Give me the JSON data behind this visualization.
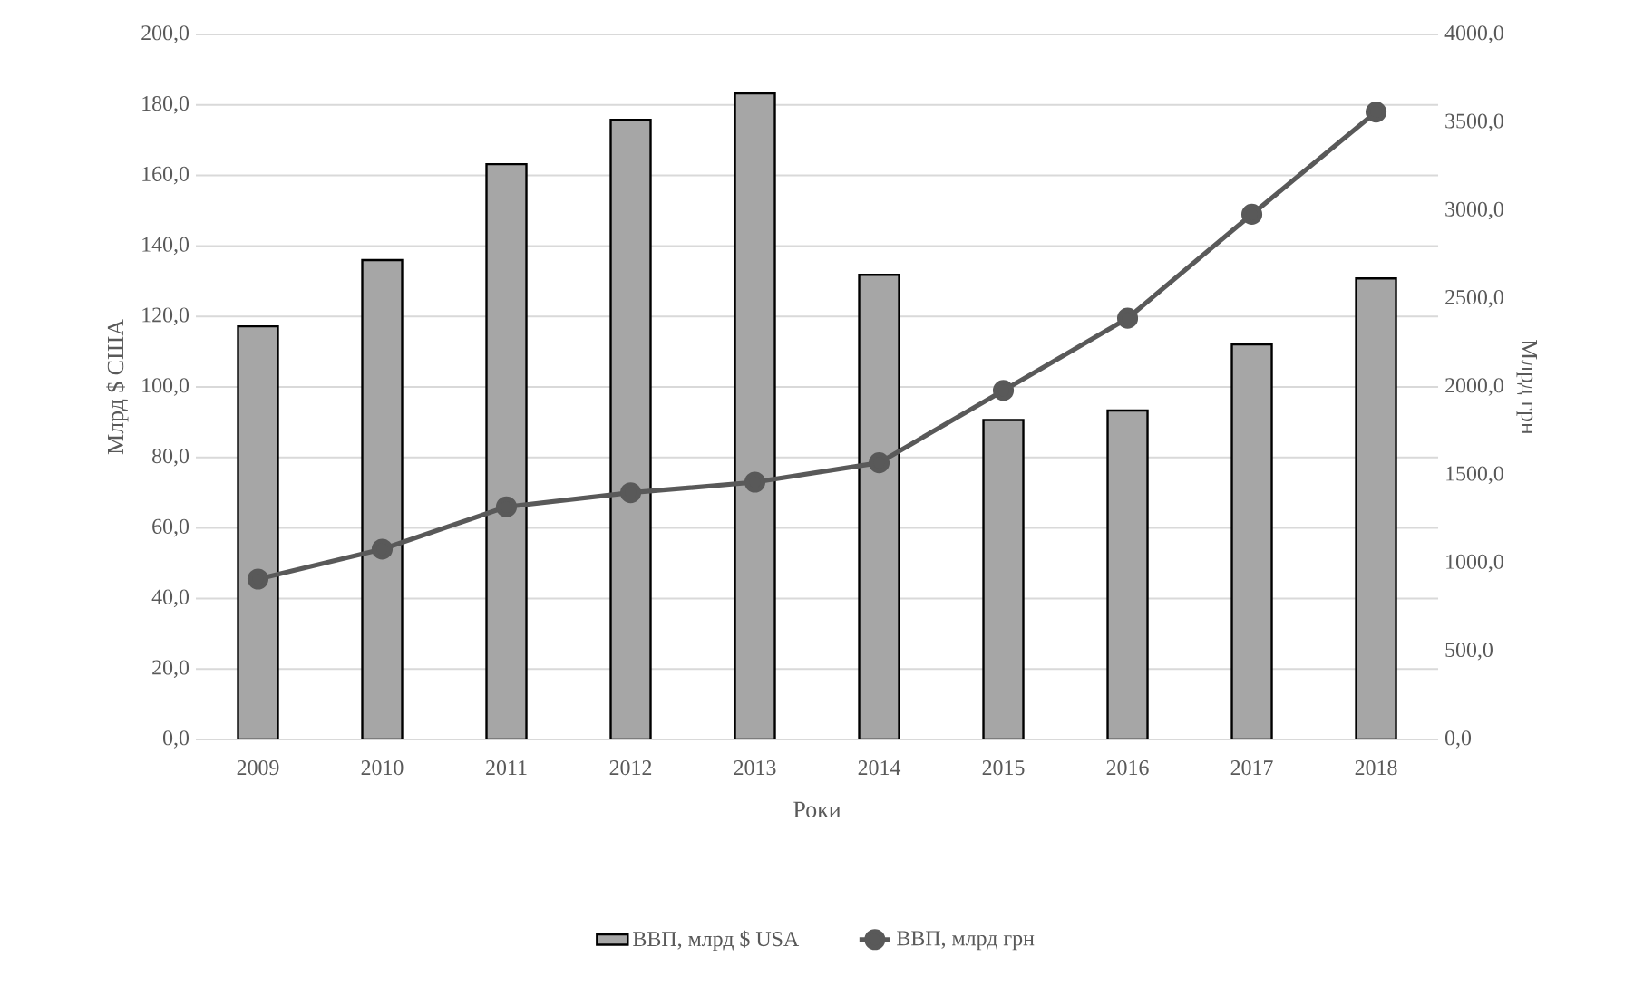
{
  "chart_data": {
    "type": "bar",
    "xlabel": "Роки",
    "ylabel": "Млрд $ США",
    "y2label": "Млрд грн",
    "categories": [
      "2009",
      "2010",
      "2011",
      "2012",
      "2013",
      "2014",
      "2015",
      "2016",
      "2017",
      "2018"
    ],
    "series": [
      {
        "name": "ВВП, млрд $ USA",
        "color": "#a6a6a6",
        "values": [
          117.2,
          136.0,
          163.2,
          175.8,
          183.3,
          131.8,
          90.6,
          93.3,
          112.1,
          130.8
        ]
      },
      {
        "name": "ВВП, млрд грн",
        "type": "line",
        "axis": "y2",
        "color": "#595959",
        "values": [
          910,
          1080,
          1320,
          1400,
          1460,
          1570,
          1980,
          2390,
          2980,
          3560
        ]
      }
    ],
    "ylim": [
      0,
      200
    ],
    "yticks": [
      {
        "value": 0,
        "label": "0,0"
      },
      {
        "value": 20,
        "label": "20,0"
      },
      {
        "value": 40,
        "label": "40,0"
      },
      {
        "value": 60,
        "label": "60,0"
      },
      {
        "value": 80,
        "label": "80,0"
      },
      {
        "value": 100,
        "label": "100,0"
      },
      {
        "value": 120,
        "label": "120,0"
      },
      {
        "value": 140,
        "label": "140,0"
      },
      {
        "value": 160,
        "label": "160,0"
      },
      {
        "value": 180,
        "label": "180,0"
      },
      {
        "value": 200,
        "label": "200,0"
      }
    ],
    "y2lim": [
      0,
      4000
    ],
    "y2ticks": [
      {
        "value": 0,
        "label": "0,0"
      },
      {
        "value": 500,
        "label": "500,0"
      },
      {
        "value": 1000,
        "label": "1000,0"
      },
      {
        "value": 1500,
        "label": "1500,0"
      },
      {
        "value": 2000,
        "label": "2000,0"
      },
      {
        "value": 2500,
        "label": "2500,0"
      },
      {
        "value": 3000,
        "label": "3000,0"
      },
      {
        "value": 3500,
        "label": "3500,0"
      },
      {
        "value": 4000,
        "label": "4000,0"
      }
    ],
    "grid": "y",
    "legend": "bottom",
    "marker": "circle"
  }
}
